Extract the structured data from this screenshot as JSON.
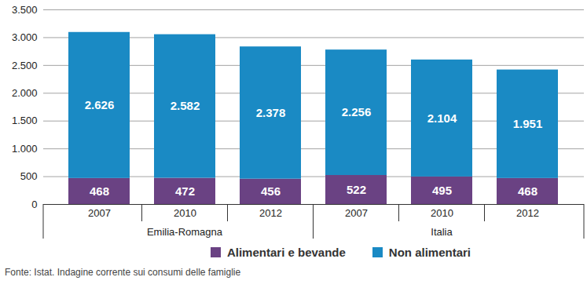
{
  "chart_data": {
    "type": "bar",
    "stacked": true,
    "data_labels": true,
    "grid": true,
    "legend": "bottom",
    "caption": "Fonte: Istat. Indagine corrente sui consumi delle famiglie",
    "categories": [
      "2007",
      "2010",
      "2012",
      "2007",
      "2010",
      "2012"
    ],
    "groups": [
      "Emilia-Romagna",
      "Emilia-Romagna",
      "Emilia-Romagna",
      "Italia",
      "Italia",
      "Italia"
    ],
    "series": [
      {
        "name": "Alimentari e bevande",
        "color": "#6a4283",
        "values": [
          468,
          472,
          456,
          522,
          495,
          468
        ]
      },
      {
        "name": "Non alimentari",
        "color": "#1a8ac4",
        "values": [
          2626,
          2582,
          2378,
          2256,
          2104,
          1951
        ],
        "value_labels": [
          "2.626",
          "2.582",
          "2.378",
          "2.256",
          "2.104",
          "1.951"
        ]
      }
    ],
    "ylim": [
      0,
      3500
    ],
    "yticks": [
      0,
      500,
      {
        "value": 1000,
        "label": "1.000"
      },
      {
        "value": 1500,
        "label": "1.500"
      },
      {
        "value": 2000,
        "label": "2.000"
      },
      {
        "value": 2500,
        "label": "2.500"
      },
      {
        "value": 3000,
        "label": "3.000"
      },
      {
        "value": 3500,
        "label": "3.500"
      }
    ]
  }
}
